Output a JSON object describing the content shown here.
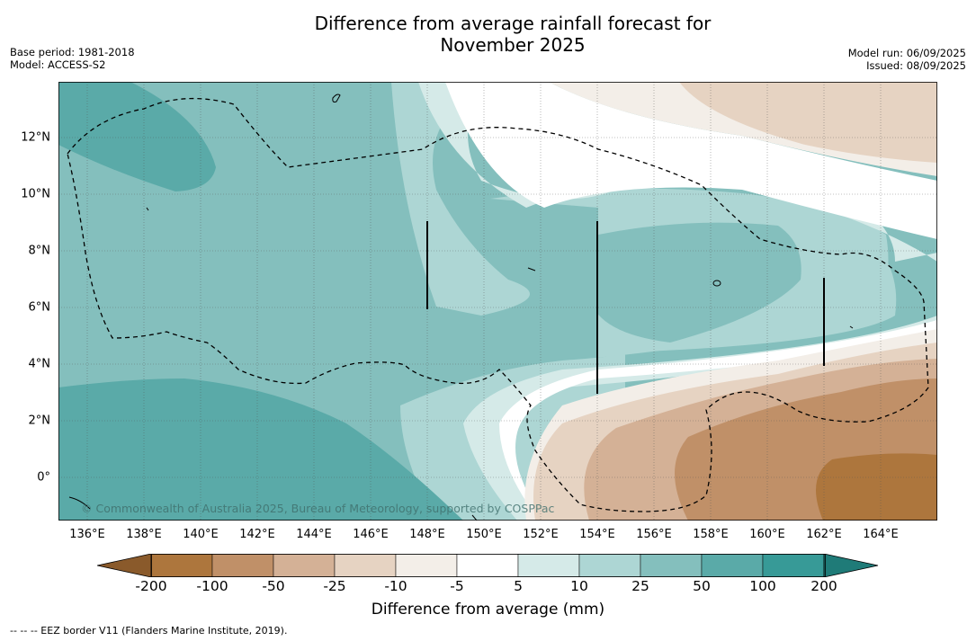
{
  "title_line1": "Difference from average rainfall forecast for",
  "title_line2": "November 2025",
  "left_info": {
    "base_period": "Base period: 1981-2018",
    "model": "Model: ACCESS-S2"
  },
  "right_info": {
    "model_run": "Model run: 06/09/2025",
    "issued": "Issued: 08/09/2025"
  },
  "map": {
    "lon_labels": [
      "136°E",
      "138°E",
      "140°E",
      "142°E",
      "144°E",
      "146°E",
      "148°E",
      "150°E",
      "152°E",
      "154°E",
      "156°E",
      "158°E",
      "160°E",
      "162°E",
      "164°E"
    ],
    "lat_labels": [
      "12°N",
      "10°N",
      "8°N",
      "6°N",
      "4°N",
      "2°N",
      "0°"
    ],
    "region_lon_range": [
      135,
      166
    ],
    "region_lat_range": [
      -1.5,
      14
    ],
    "credit": "© Commonwealth of Australia 2025, Bureau of Meteorology, supported by COSPPac"
  },
  "colorbar": {
    "tick_labels": [
      "-200",
      "-100",
      "-50",
      "-25",
      "-10",
      "-5",
      "5",
      "10",
      "25",
      "50",
      "100",
      "200"
    ],
    "colors": [
      "#8a5a2b",
      "#ad763d",
      "#c09068",
      "#d4b196",
      "#e6d3c2",
      "#f3eee8",
      "#ffffff",
      "#d5eae8",
      "#add6d4",
      "#84bfbd",
      "#5aaaa8",
      "#379a97",
      "#1f7b78"
    ],
    "label": "Difference from average (mm)"
  },
  "footnote": "--  --  -- EEZ border V11 (Flanders Marine Institute, 2019)."
}
